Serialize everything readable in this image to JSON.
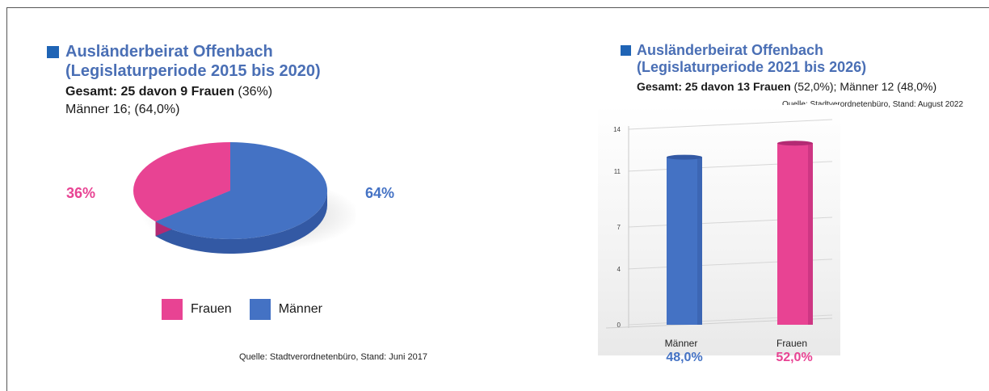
{
  "colors": {
    "blue": "#4472c4",
    "blue_dark": "#3359a4",
    "pink": "#e84393",
    "pink_dark": "#b32a73",
    "title_blue": "#4a6fb5"
  },
  "left": {
    "title": "Ausländerbeirat Offenbach",
    "subtitle": "(Legislaturperiode 2015 bis 2020)",
    "gesamt_bold": "Gesamt: 25 davon 9 Frauen",
    "gesamt_rest": " (36%)",
    "maenner_line": "Männer 16; (64,0%)",
    "source": "Quelle: Stadtverordnetenbüro, Stand: Juni 2017"
  },
  "right": {
    "title": "Ausländerbeirat Offenbach",
    "subtitle": "(Legislaturperiode 2021 bis 2026)",
    "gesamt_bold": "Gesamt: 25 davon 13 Frauen",
    "gesamt_rest": " (52,0%); Männer 12 (48,0%)",
    "source": "Quelle: Stadtverordnetenbüro, Stand: August 2022"
  },
  "chart_data": [
    {
      "type": "pie",
      "categories": [
        "Frauen",
        "Männer"
      ],
      "values": [
        36,
        64
      ],
      "labels": [
        "36%",
        "64%"
      ],
      "legend": [
        "Frauen",
        "Männer"
      ],
      "legend_position": "bottom"
    },
    {
      "type": "bar",
      "categories": [
        "Männer",
        "Frauen"
      ],
      "values": [
        12,
        13
      ],
      "data_labels": [
        "48,0%",
        "52,0%"
      ],
      "y_ticks": [
        0,
        4,
        7,
        11,
        14
      ],
      "ylim": [
        0,
        14
      ],
      "grid": true
    }
  ]
}
